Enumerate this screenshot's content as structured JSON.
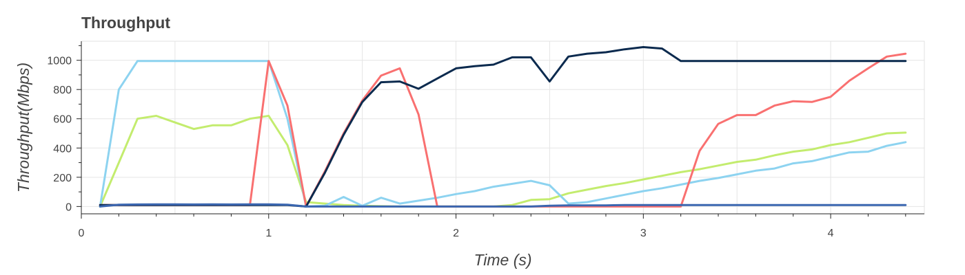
{
  "chart_data": {
    "type": "line",
    "title": "Throughput",
    "xlabel": "Time (s)",
    "ylabel": "Throughput(Mbps)",
    "xlim": [
      0,
      4.5
    ],
    "ylim": [
      -50,
      1130
    ],
    "grid": true,
    "legend": "none",
    "x_ticks": [
      0,
      1,
      2,
      3,
      4
    ],
    "y_ticks": [
      0,
      200,
      400,
      600,
      800,
      1000
    ],
    "series": [
      {
        "color": "#c3ec6e",
        "x": [
          0.1,
          0.2,
          0.3,
          0.4,
          0.5,
          0.6,
          0.7,
          0.8,
          0.9,
          1.0,
          1.1,
          1.2,
          1.3,
          1.4,
          1.5,
          1.6,
          1.7,
          1.8,
          1.9,
          2.0,
          2.1,
          2.2,
          2.3,
          2.4,
          2.5,
          2.6,
          2.7,
          2.8,
          2.9,
          3.0,
          3.1,
          3.2,
          3.3,
          3.4,
          3.5,
          3.6,
          3.7,
          3.8,
          3.9,
          4.0,
          4.1,
          4.2,
          4.3,
          4.4
        ],
        "y": [
          0,
          300,
          600,
          620,
          575,
          530,
          555,
          555,
          600,
          620,
          420,
          30,
          20,
          10,
          5,
          2,
          0,
          0,
          0,
          0,
          0,
          0,
          10,
          45,
          50,
          90,
          115,
          140,
          160,
          185,
          210,
          235,
          255,
          280,
          305,
          320,
          350,
          375,
          390,
          420,
          440,
          470,
          500,
          505
        ]
      },
      {
        "color": "#8dd3f0",
        "x": [
          0.1,
          0.2,
          0.3,
          0.4,
          0.5,
          0.6,
          0.7,
          0.8,
          0.9,
          1.0,
          1.1,
          1.2,
          1.3,
          1.4,
          1.5,
          1.6,
          1.7,
          1.8,
          1.9,
          2.0,
          2.1,
          2.2,
          2.3,
          2.4,
          2.5,
          2.6,
          2.7,
          2.8,
          2.9,
          3.0,
          3.1,
          3.2,
          3.3,
          3.4,
          3.5,
          3.6,
          3.7,
          3.8,
          3.9,
          4.0,
          4.1,
          4.2,
          4.3,
          4.4
        ],
        "y": [
          0,
          800,
          995,
          995,
          995,
          995,
          995,
          995,
          995,
          995,
          600,
          0,
          5,
          65,
          5,
          60,
          20,
          40,
          60,
          85,
          105,
          135,
          155,
          175,
          145,
          20,
          30,
          55,
          80,
          105,
          125,
          150,
          175,
          195,
          220,
          245,
          260,
          295,
          310,
          340,
          370,
          375,
          415,
          440
        ]
      },
      {
        "color": "#f97070",
        "x": [
          0.1,
          0.2,
          0.3,
          0.4,
          0.5,
          0.6,
          0.7,
          0.8,
          0.9,
          1.0,
          1.1,
          1.2,
          1.3,
          1.4,
          1.5,
          1.6,
          1.7,
          1.8,
          1.9,
          2.0,
          2.1,
          2.2,
          2.3,
          2.4,
          2.5,
          2.6,
          2.7,
          2.8,
          2.9,
          3.0,
          3.1,
          3.2,
          3.3,
          3.4,
          3.5,
          3.6,
          3.7,
          3.8,
          3.9,
          4.0,
          4.1,
          4.2,
          4.3,
          4.4
        ],
        "y": [
          10,
          10,
          10,
          10,
          10,
          10,
          10,
          10,
          10,
          995,
          690,
          0,
          240,
          500,
          725,
          895,
          945,
          630,
          0,
          0,
          0,
          0,
          0,
          0,
          0,
          0,
          0,
          0,
          0,
          0,
          0,
          0,
          380,
          565,
          625,
          625,
          690,
          720,
          715,
          750,
          860,
          945,
          1025,
          1045
        ]
      },
      {
        "color": "#0b2a4e",
        "x": [
          0.1,
          0.2,
          0.3,
          0.4,
          0.5,
          0.6,
          0.7,
          0.8,
          0.9,
          1.0,
          1.1,
          1.2,
          1.3,
          1.4,
          1.5,
          1.6,
          1.7,
          1.8,
          1.9,
          2.0,
          2.1,
          2.2,
          2.3,
          2.4,
          2.5,
          2.6,
          2.7,
          2.8,
          2.9,
          3.0,
          3.1,
          3.2,
          3.3,
          3.4,
          3.5,
          3.6,
          3.7,
          3.8,
          3.9,
          4.0,
          4.1,
          4.2,
          4.3,
          4.4
        ],
        "y": [
          10,
          10,
          10,
          10,
          10,
          10,
          10,
          10,
          10,
          10,
          10,
          0,
          230,
          490,
          715,
          850,
          855,
          805,
          875,
          945,
          960,
          970,
          1020,
          1020,
          855,
          1025,
          1045,
          1055,
          1075,
          1090,
          1080,
          995,
          995,
          995,
          995,
          995,
          995,
          995,
          995,
          995,
          995,
          995,
          995,
          995
        ]
      },
      {
        "color": "#3a66b0",
        "x": [
          0.1,
          0.2,
          0.3,
          0.4,
          0.5,
          0.6,
          0.7,
          0.8,
          0.9,
          1.0,
          1.1,
          1.2,
          1.3,
          1.4,
          1.5,
          1.6,
          1.7,
          1.8,
          1.9,
          2.0,
          2.1,
          2.2,
          2.3,
          2.4,
          2.5,
          2.6,
          2.7,
          2.8,
          2.9,
          3.0,
          3.1,
          3.2,
          3.3,
          3.4,
          3.5,
          3.6,
          3.7,
          3.8,
          3.9,
          4.0,
          4.1,
          4.2,
          4.3,
          4.4
        ],
        "y": [
          0,
          12,
          14,
          15,
          15,
          14,
          15,
          14,
          15,
          15,
          12,
          0,
          0,
          0,
          0,
          0,
          0,
          0,
          0,
          0,
          0,
          0,
          0,
          0,
          5,
          8,
          8,
          8,
          10,
          10,
          10,
          10,
          10,
          10,
          10,
          10,
          10,
          10,
          10,
          10,
          10,
          10,
          10,
          10
        ]
      }
    ]
  }
}
